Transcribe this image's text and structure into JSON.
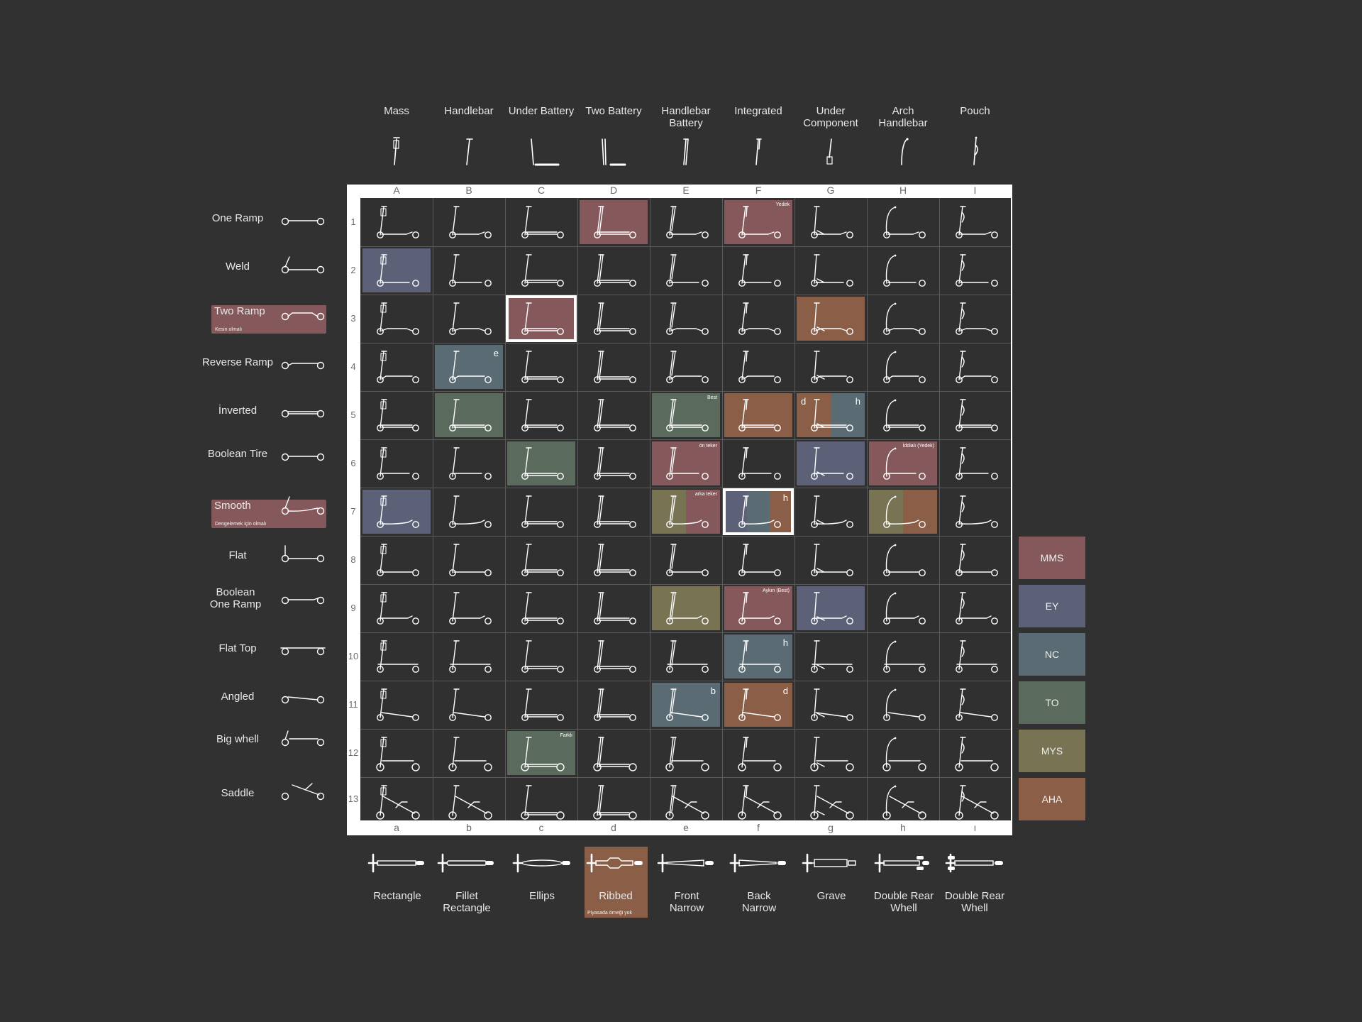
{
  "colors": {
    "MMS": "#85595c",
    "EY": "#5c6178",
    "NC": "#5a6b73",
    "TO": "#5a6b5d",
    "MYS": "#777353",
    "AHA": "#8a5e47",
    "frame": "#ffffff",
    "background": "#313131"
  },
  "columns": [
    {
      "letter": "A",
      "label": "Mass",
      "stem": "mass"
    },
    {
      "letter": "B",
      "label": "Handlebar",
      "stem": "handlebar"
    },
    {
      "letter": "C",
      "label": "Under Battery",
      "stem": "under-battery"
    },
    {
      "letter": "D",
      "label": "Two Battery",
      "stem": "two-battery"
    },
    {
      "letter": "E",
      "label": "Handlebar Battery",
      "stem": "handlebar-battery"
    },
    {
      "letter": "F",
      "label": "Integrated",
      "stem": "integrated"
    },
    {
      "letter": "G",
      "label": "Under Component",
      "stem": "under-component"
    },
    {
      "letter": "H",
      "label": "Arch Handlebar",
      "stem": "arch-handlebar"
    },
    {
      "letter": "I",
      "label": "Pouch",
      "stem": "pouch"
    }
  ],
  "rows": [
    {
      "num": "1",
      "label": "One Ramp",
      "deck": "one-ramp"
    },
    {
      "num": "2",
      "label": "Weld",
      "deck": "weld"
    },
    {
      "num": "3",
      "label": "Two Ramp",
      "sub": "Kesin olmalı",
      "highlight": "MMS",
      "deck": "two-ramp"
    },
    {
      "num": "4",
      "label": "Reverse Ramp",
      "deck": "reverse-ramp"
    },
    {
      "num": "5",
      "label": "İnverted",
      "deck": "inverted"
    },
    {
      "num": "6",
      "label": "Boolean Tire",
      "deck": "boolean-tire"
    },
    {
      "num": "7",
      "label": "Smooth",
      "sub": "Dengelemek için olmalı",
      "highlight": "MMS",
      "deck": "smooth"
    },
    {
      "num": "8",
      "label": "Flat",
      "deck": "flat"
    },
    {
      "num": "9",
      "label": "Boolean One Ramp",
      "deck": "boolean-one-ramp"
    },
    {
      "num": "10",
      "label": "Flat Top",
      "deck": "flat-top"
    },
    {
      "num": "11",
      "label": "Angled",
      "deck": "angled"
    },
    {
      "num": "12",
      "label": "Big whell",
      "deck": "big-wheel"
    },
    {
      "num": "13",
      "label": "Saddle",
      "deck": "saddle"
    }
  ],
  "bottom_letters": [
    "a",
    "b",
    "c",
    "d",
    "e",
    "f",
    "g",
    "h",
    "ı"
  ],
  "deck_shapes": [
    {
      "label": "Rectangle",
      "shape": "rectangle"
    },
    {
      "label": "Fillet Rectangle",
      "shape": "fillet-rectangle"
    },
    {
      "label": "Ellips",
      "shape": "ellips"
    },
    {
      "label": "Ribbed",
      "sub": "Piyasada örneği yok",
      "highlight": "AHA",
      "shape": "ribbed"
    },
    {
      "label": "Front Narrow",
      "shape": "front-narrow"
    },
    {
      "label": "Back Narrow",
      "shape": "back-narrow"
    },
    {
      "label": "Grave",
      "shape": "grave"
    },
    {
      "label": "Double Rear Whell",
      "shape": "double-rear-a"
    },
    {
      "label": "Double Rear Whell",
      "shape": "double-rear-b"
    }
  ],
  "legend": [
    "MMS",
    "EY",
    "NC",
    "TO",
    "MYS",
    "AHA"
  ],
  "highlights": [
    {
      "col": 3,
      "row": 0,
      "colors": [
        "MMS"
      ]
    },
    {
      "col": 5,
      "row": 0,
      "colors": [
        "MMS"
      ],
      "note": "Yedek"
    },
    {
      "col": 0,
      "row": 1,
      "colors": [
        "EY"
      ]
    },
    {
      "col": 2,
      "row": 2,
      "colors": [
        "MMS"
      ],
      "selected": true
    },
    {
      "col": 6,
      "row": 2,
      "colors": [
        "AHA"
      ]
    },
    {
      "col": 1,
      "row": 3,
      "colors": [
        "NC"
      ],
      "corner_r": "e"
    },
    {
      "col": 1,
      "row": 4,
      "colors": [
        "TO"
      ]
    },
    {
      "col": 4,
      "row": 4,
      "colors": [
        "TO"
      ],
      "note": "Best"
    },
    {
      "col": 5,
      "row": 4,
      "colors": [
        "AHA"
      ]
    },
    {
      "col": 6,
      "row": 4,
      "colors": [
        "AHA",
        "NC"
      ],
      "corner_l": "d",
      "corner_r": "h"
    },
    {
      "col": 2,
      "row": 5,
      "colors": [
        "TO"
      ]
    },
    {
      "col": 4,
      "row": 5,
      "colors": [
        "MMS"
      ],
      "note": "ön teker"
    },
    {
      "col": 6,
      "row": 5,
      "colors": [
        "EY"
      ]
    },
    {
      "col": 7,
      "row": 5,
      "colors": [
        "MMS"
      ],
      "note": "İddialı (Yedek)"
    },
    {
      "col": 0,
      "row": 6,
      "colors": [
        "EY"
      ]
    },
    {
      "col": 4,
      "row": 6,
      "colors": [
        "MYS",
        "MMS"
      ],
      "note": "arka teker"
    },
    {
      "col": 5,
      "row": 6,
      "colors": [
        "EY",
        "NC",
        "AHA"
      ],
      "corner_r": "h",
      "selected": true
    },
    {
      "col": 7,
      "row": 6,
      "colors": [
        "MYS",
        "AHA"
      ]
    },
    {
      "col": 4,
      "row": 8,
      "colors": [
        "MYS"
      ]
    },
    {
      "col": 5,
      "row": 8,
      "colors": [
        "MMS"
      ],
      "note": "Aykın (Best)"
    },
    {
      "col": 6,
      "row": 8,
      "colors": [
        "EY"
      ]
    },
    {
      "col": 5,
      "row": 9,
      "colors": [
        "NC"
      ],
      "corner_r": "h"
    },
    {
      "col": 4,
      "row": 10,
      "colors": [
        "NC"
      ],
      "corner_r": "b"
    },
    {
      "col": 5,
      "row": 10,
      "colors": [
        "AHA"
      ],
      "corner_r": "d"
    },
    {
      "col": 2,
      "row": 11,
      "colors": [
        "TO"
      ],
      "note": "Farklı"
    }
  ]
}
